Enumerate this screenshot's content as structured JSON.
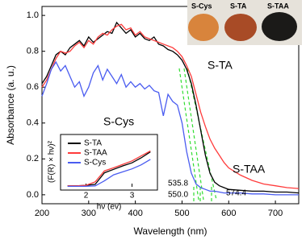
{
  "chart_data": [
    {
      "type": "line",
      "x_label": "Wavelength (nm)",
      "y_label": "Absorbance (a. u.)",
      "x": [
        200,
        210,
        220,
        230,
        240,
        250,
        260,
        270,
        280,
        290,
        300,
        310,
        320,
        330,
        340,
        350,
        360,
        370,
        380,
        390,
        400,
        410,
        420,
        430,
        440,
        450,
        460,
        470,
        480,
        490,
        500,
        510,
        520,
        530,
        540,
        550,
        560,
        570,
        580,
        590,
        600,
        625,
        650,
        675,
        700,
        725,
        750
      ],
      "series": [
        {
          "name": "S-TA",
          "color": "#000000",
          "values": [
            0.62,
            0.66,
            0.72,
            0.78,
            0.8,
            0.78,
            0.82,
            0.84,
            0.86,
            0.83,
            0.88,
            0.85,
            0.87,
            0.89,
            0.91,
            0.9,
            0.96,
            0.93,
            0.9,
            0.92,
            0.88,
            0.9,
            0.87,
            0.86,
            0.88,
            0.84,
            0.83,
            0.81,
            0.8,
            0.78,
            0.75,
            0.7,
            0.62,
            0.5,
            0.36,
            0.22,
            0.12,
            0.07,
            0.05,
            0.04,
            0.03,
            0.025,
            0.02,
            0.02,
            0.015,
            0.015,
            0.01
          ]
        },
        {
          "name": "S-TAA",
          "color": "#ff3b3b",
          "values": [
            0.6,
            0.64,
            0.7,
            0.76,
            0.8,
            0.79,
            0.8,
            0.83,
            0.85,
            0.82,
            0.86,
            0.84,
            0.88,
            0.9,
            0.89,
            0.92,
            0.94,
            0.95,
            0.92,
            0.93,
            0.89,
            0.91,
            0.88,
            0.87,
            0.86,
            0.85,
            0.84,
            0.83,
            0.82,
            0.8,
            0.77,
            0.72,
            0.66,
            0.56,
            0.46,
            0.38,
            0.31,
            0.26,
            0.22,
            0.18,
            0.15,
            0.11,
            0.08,
            0.06,
            0.05,
            0.04,
            0.035
          ]
        },
        {
          "name": "S-Cys",
          "color": "#4a5cf0",
          "values": [
            0.55,
            0.62,
            0.7,
            0.74,
            0.69,
            0.72,
            0.66,
            0.6,
            0.63,
            0.55,
            0.6,
            0.68,
            0.72,
            0.64,
            0.7,
            0.66,
            0.62,
            0.67,
            0.6,
            0.63,
            0.6,
            0.62,
            0.59,
            0.61,
            0.58,
            0.57,
            0.44,
            0.56,
            0.52,
            0.5,
            0.4,
            0.24,
            0.12,
            0.06,
            0.04,
            0.03,
            0.02,
            0.02,
            0.015,
            0.01,
            0.01,
            0.01,
            0.005,
            0.005,
            0,
            0,
            0
          ]
        }
      ],
      "xlim": [
        200,
        750
      ],
      "ylim": [
        -0.05,
        1.05
      ],
      "xticks": [
        200,
        300,
        400,
        500,
        600,
        700
      ],
      "yticks": [
        {
          "value": 0,
          "label": "0.0"
        },
        0.2,
        0.4,
        0.6,
        0.8,
        {
          "value": 1,
          "label": "1.0"
        }
      ],
      "annotations": [
        "535.8",
        "550.0",
        "574.4"
      ]
    },
    {
      "type": "line",
      "x_label": "hν (ev)",
      "y_label": "(F(R) × hν)²",
      "x": [
        1.6,
        1.8,
        2.0,
        2.2,
        2.4,
        2.6,
        2.8,
        3.0,
        3.2,
        3.4
      ],
      "series": [
        {
          "name": "S-TA",
          "color": "#000000",
          "values": [
            0.02,
            0.02,
            0.03,
            0.05,
            0.28,
            0.35,
            0.42,
            0.48,
            0.58,
            0.7
          ]
        },
        {
          "name": "S-TAA",
          "color": "#ff3b3b",
          "values": [
            0.02,
            0.02,
            0.03,
            0.1,
            0.32,
            0.38,
            0.45,
            0.52,
            0.62,
            0.72
          ]
        },
        {
          "name": "S-Cys",
          "color": "#4a5cf0",
          "values": [
            0.01,
            0.01,
            0.01,
            0.02,
            0.12,
            0.24,
            0.3,
            0.36,
            0.44,
            0.55
          ]
        }
      ],
      "xlim": [
        1.5,
        3.5
      ],
      "ylim": [
        0,
        1
      ],
      "xticks": [
        2,
        3
      ],
      "legend": "upper left"
    }
  ],
  "photo": {
    "labels": [
      "S-Cys",
      "S-TA",
      "S-TAA"
    ]
  }
}
